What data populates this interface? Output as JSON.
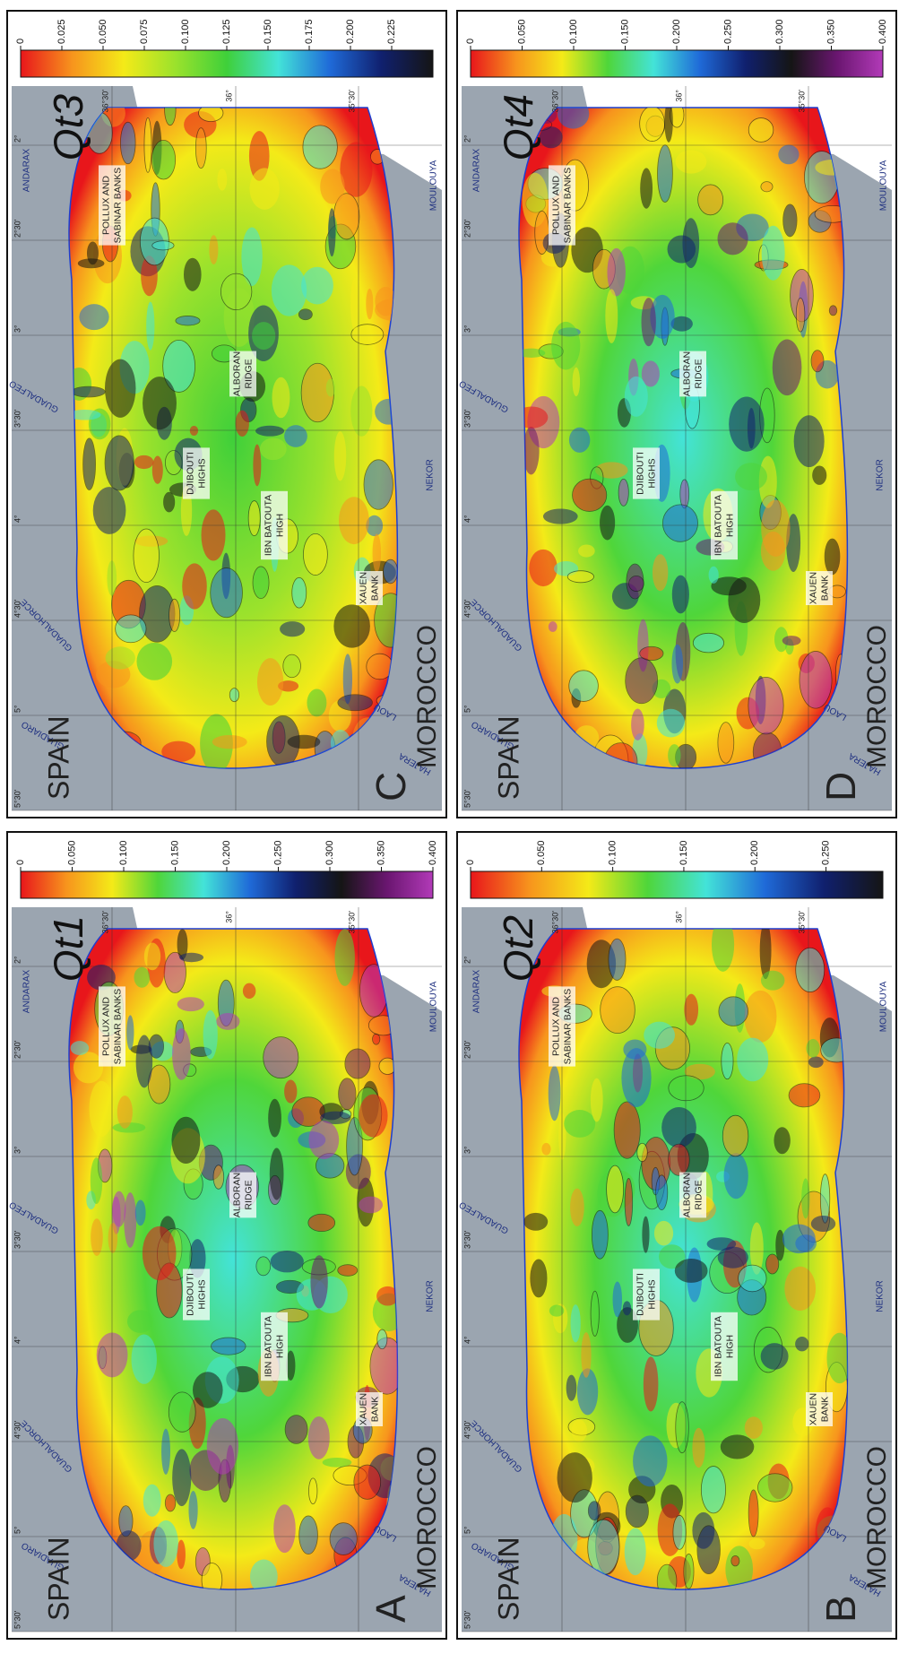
{
  "map": {
    "land": [
      "SPAIN",
      "MOROCCO"
    ],
    "places": [
      {
        "lines": [
          "POLLUX AND",
          "SABINAR BANKS"
        ]
      },
      {
        "lines": [
          "ALBORAN",
          "RIDGE"
        ]
      },
      {
        "lines": [
          "DJIBOUTI",
          "HIGHS"
        ]
      },
      {
        "lines": [
          "IBN BATOUTA",
          "HIGH"
        ]
      },
      {
        "lines": [
          "XAUEN",
          "BANK"
        ]
      }
    ],
    "rivers": [
      "GUADIARO",
      "GUADALHORCE",
      "GUADALFEO",
      "ANDARAX",
      "HAJERA",
      "LAOU",
      "NEKOR",
      "MOULOUYA"
    ],
    "longitudes": [
      "5°30'",
      "5°",
      "4°30'",
      "4°",
      "3°30'",
      "3°",
      "2°30'",
      "2°"
    ],
    "latitudes": [
      "36°30'",
      "36°",
      "35°30'"
    ]
  },
  "panels": [
    {
      "letter": "A",
      "title": "Qt1",
      "colorbar": {
        "range": [
          0,
          0.4
        ],
        "ticks": [
          0,
          {
            "value": 0.05,
            "label": "0.050"
          },
          {
            "value": 0.1,
            "label": "0.100"
          },
          {
            "value": 0.15,
            "label": "0.150"
          },
          {
            "value": 0.2,
            "label": "0.200"
          },
          {
            "value": 0.25,
            "label": "0.250"
          },
          {
            "value": 0.3,
            "label": "0.300"
          },
          {
            "value": 0.35,
            "label": "0.350"
          },
          {
            "value": 0.4,
            "label": "0.400"
          }
        ],
        "colors": [
          "#e8161b",
          "#f7941d",
          "#f4ea18",
          "#4fd63a",
          "#43e3d8",
          "#1f6ad8",
          "#10206e",
          "#151515",
          "#6a1670",
          "#b23ab8"
        ]
      }
    },
    {
      "letter": "B",
      "title": "Qt2",
      "colorbar": {
        "range": [
          0,
          0.29
        ],
        "ticks": [
          0,
          {
            "value": 0.05,
            "label": "0.050"
          },
          {
            "value": 0.1,
            "label": "0.100"
          },
          {
            "value": 0.15,
            "label": "0.150"
          },
          {
            "value": 0.2,
            "label": "0.200"
          },
          {
            "value": 0.25,
            "label": "0.250"
          }
        ],
        "colors": [
          "#e8161b",
          "#f7941d",
          "#f4ea18",
          "#4fd63a",
          "#43e3d8",
          "#1f6ad8",
          "#10206e",
          "#151515"
        ]
      }
    },
    {
      "letter": "C",
      "title": "Qt3",
      "colorbar": {
        "range": [
          0,
          0.25
        ],
        "ticks": [
          0,
          {
            "value": 0.025,
            "label": "0.025"
          },
          {
            "value": 0.05,
            "label": "0.050"
          },
          {
            "value": 0.075,
            "label": "0.075"
          },
          {
            "value": 0.1,
            "label": "0.100"
          },
          {
            "value": 0.125,
            "label": "0.125"
          },
          {
            "value": 0.15,
            "label": "0.150"
          },
          {
            "value": 0.175,
            "label": "0.175"
          },
          {
            "value": 0.2,
            "label": "0.200"
          },
          {
            "value": 0.225,
            "label": "0.225"
          }
        ],
        "colors": [
          "#e8161b",
          "#f7941d",
          "#f4ea18",
          "#9be22c",
          "#3fd03a",
          "#43e3d8",
          "#1f6ad8",
          "#10206e",
          "#151515"
        ]
      }
    },
    {
      "letter": "D",
      "title": "Qt4",
      "colorbar": {
        "range": [
          0,
          0.4
        ],
        "ticks": [
          0,
          {
            "value": 0.05,
            "label": "0.050"
          },
          {
            "value": 0.1,
            "label": "0.100"
          },
          {
            "value": 0.15,
            "label": "0.150"
          },
          {
            "value": 0.2,
            "label": "0.200"
          },
          {
            "value": 0.25,
            "label": "0.250"
          },
          {
            "value": 0.3,
            "label": "0.300"
          },
          {
            "value": 0.35,
            "label": "0.350"
          },
          {
            "value": 0.4,
            "label": "0.400"
          }
        ],
        "colors": [
          "#e8161b",
          "#f7941d",
          "#f4ea18",
          "#4fd63a",
          "#43e3d8",
          "#1f6ad8",
          "#10206e",
          "#151515",
          "#6a1670",
          "#b23ab8"
        ]
      }
    }
  ]
}
